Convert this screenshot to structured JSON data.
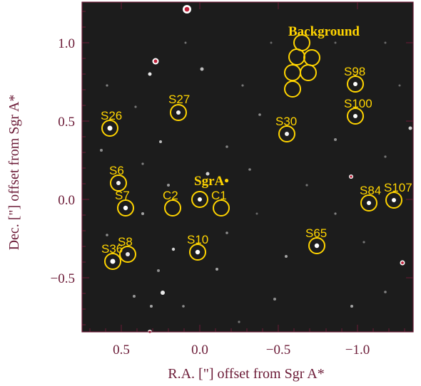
{
  "figure": {
    "xlabel": "R.A. [\"] offset from Sgr A*",
    "ylabel": "Dec. [\"] offset from Sgr A*",
    "x_ticks": [
      "0.5",
      "0.0",
      "−0.5",
      "−1.0"
    ],
    "y_ticks": [
      "1.0",
      "0.5",
      "0.0",
      "−0.5"
    ],
    "frame_color": "#6b1a36",
    "marker_color": "#ffd400",
    "background_label": "Background",
    "sgra_label": "SgrA•",
    "sources": [
      {
        "id": "S26",
        "label": "S26"
      },
      {
        "id": "S27",
        "label": "S27"
      },
      {
        "id": "S30",
        "label": "S30"
      },
      {
        "id": "S98",
        "label": "S98"
      },
      {
        "id": "S100",
        "label": "S100"
      },
      {
        "id": "S6",
        "label": "S6"
      },
      {
        "id": "S7",
        "label": "S7"
      },
      {
        "id": "C2",
        "label": "C2"
      },
      {
        "id": "C1",
        "label": "C1"
      },
      {
        "id": "S84",
        "label": "S84"
      },
      {
        "id": "S107",
        "label": "S107"
      },
      {
        "id": "S65",
        "label": "S65"
      },
      {
        "id": "S10",
        "label": "S10"
      },
      {
        "id": "S8",
        "label": "S8"
      },
      {
        "id": "S36",
        "label": "S36"
      }
    ]
  }
}
